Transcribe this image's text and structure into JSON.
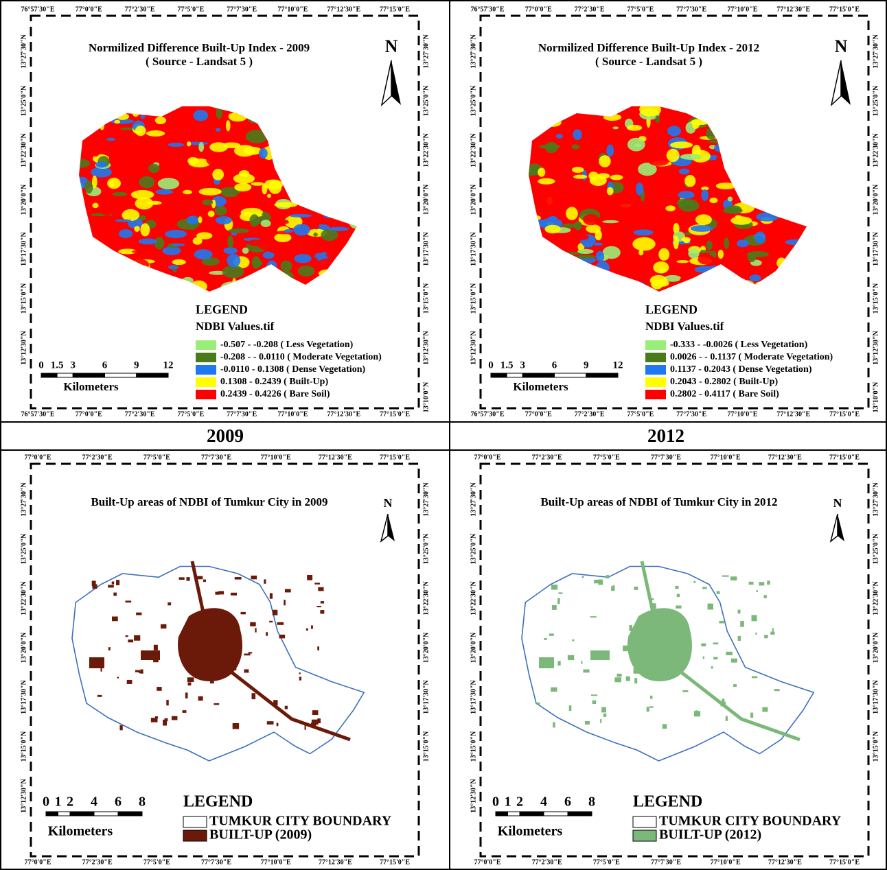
{
  "captions": [
    "2009",
    "2012"
  ],
  "panels": [
    {
      "title": "Normilized Difference Built-Up Index - 2009",
      "subtitle": "( Source - Landsat 5 )",
      "north": "N",
      "kind": "ndbi",
      "legend": {
        "title": "LEGEND",
        "subtitle": "NDBI Values.tif",
        "items": [
          {
            "label": "-0.507 - -0.208 ( Less Vegetation)",
            "color": "#99ee77"
          },
          {
            "label": "-0.208 - - 0.0110 ( Moderate Vegetation)",
            "color": "#4b7a1b"
          },
          {
            "label": "-0.0110 - 0.1308 ( Dense Vegetation)",
            "color": "#1e78f0"
          },
          {
            "label": "0.1308 - 0.2439 ( Built-Up)",
            "color": "#ffff00"
          },
          {
            "label": "0.2439 - 0.4226 ( Bare Soil)",
            "color": "#ff0000"
          }
        ]
      },
      "scale": {
        "labels": [
          "0",
          "1.5",
          "3",
          "6",
          "9",
          "12"
        ],
        "unit": "Kilometers"
      },
      "coords": {
        "top": [
          "76°57'30\"E",
          "77°0'0\"E",
          "77°2'30\"E",
          "77°5'0\"E",
          "77°7'30\"E",
          "77°10'0\"E",
          "77°12'30\"E",
          "77°15'0\"E"
        ],
        "bottom": [
          "76°57'30\"E",
          "77°0'0\"E",
          "77°2'30\"E",
          "77°5'0\"E",
          "77°7'30\"E",
          "77°10'0\"E",
          "77°12'30\"E",
          "77°15'0\"E"
        ],
        "left": [
          "13°27'30\"N",
          "13°25'0\"N",
          "13°22'30\"N",
          "13°20'0\"N",
          "13°17'30\"N",
          "13°15'0\"N",
          "13°12'30\"N"
        ],
        "right": [
          "13°27'30\"N",
          "13°25'0\"N",
          "13°22'30\"N",
          "13°20'0\"N",
          "13°17'30\"N",
          "13°15'0\"N",
          "13°12'30\"N",
          "13°10'0\"N"
        ]
      }
    },
    {
      "title": "Normilized Difference Built-Up Index - 2012",
      "subtitle": "( Source - Landsat 5 )",
      "north": "N",
      "kind": "ndbi",
      "legend": {
        "title": "LEGEND",
        "subtitle": "NDBI Values.tif",
        "items": [
          {
            "label": "-0.333 - -0.0026 ( Less Vegetation)",
            "color": "#99ee77"
          },
          {
            "label": "0.0026 - - 0.1137 ( Moderate Vegetation)",
            "color": "#4b7a1b"
          },
          {
            "label": "0.1137 - 0.2043 ( Dense Vegetation)",
            "color": "#1e78f0"
          },
          {
            "label": "0.2043 - 0.2802 ( Built-Up)",
            "color": "#ffff00"
          },
          {
            "label": "0.2802 - 0.4117 ( Bare Soil)",
            "color": "#ff0000"
          }
        ]
      },
      "scale": {
        "labels": [
          "0",
          "1.5",
          "3",
          "6",
          "9",
          "12"
        ],
        "unit": "Kilometers"
      },
      "coords": {
        "top": [
          "76°57'30\"E",
          "77°0'0\"E",
          "77°2'30\"E",
          "77°5'0\"E",
          "77°7'30\"E",
          "77°10'0\"E",
          "77°12'30\"E",
          "77°15'0\"E"
        ],
        "bottom": [
          "76°57'30\"E",
          "77°0'0\"E",
          "77°2'30\"E",
          "77°5'0\"E",
          "77°7'30\"E",
          "77°10'0\"E",
          "77°12'30\"E",
          "77°15'0\"E"
        ],
        "left": [
          "13°27'30\"N",
          "13°25'0\"N",
          "13°22'30\"N",
          "13°20'0\"N",
          "13°17'30\"N",
          "13°15'0\"N",
          "13°12'30\"N"
        ],
        "right": [
          "13°27'30\"N",
          "13°25'0\"N",
          "13°22'30\"N",
          "13°20'0\"N",
          "13°17'30\"N",
          "13°15'0\"N",
          "13°12'30\"N",
          "13°10'0\"N"
        ]
      }
    },
    {
      "title": "Built-Up areas of NDBI of Tumkur City in 2009",
      "north": "N",
      "kind": "built",
      "legend": {
        "title": "LEGEND",
        "items": [
          {
            "label": "TUMKUR CITY BOUNDARY",
            "color": "#ffffff"
          },
          {
            "label": "BUILT-UP (2009)",
            "color": "#6b1a0a"
          }
        ]
      },
      "scale": {
        "labels": [
          "0",
          "1",
          "2",
          "4",
          "6",
          "8"
        ],
        "unit": "Kilometers"
      },
      "coords": {
        "top": [
          "77°0'0\"E",
          "77°2'30\"E",
          "77°5'0\"E",
          "77°7'30\"E",
          "77°10'0\"E",
          "77°12'30\"E",
          "77°15'0\"E"
        ],
        "bottom": [
          "77°0'0\"E",
          "77°2'30\"E",
          "77°5'0\"E",
          "77°7'30\"E",
          "77°10'0\"E",
          "77°12'30\"E",
          "77°15'0\"E"
        ],
        "left": [
          "13°27'30\"N",
          "13°25'0\"N",
          "13°22'30\"N",
          "13°20'0\"N",
          "13°17'30\"N",
          "13°15'0\"N",
          "13°12'30\"N"
        ],
        "right": [
          "13°27'30\"N",
          "13°25'0\"N",
          "13°22'30\"N",
          "13°20'0\"N",
          "13°17'30\"N",
          "13°15'0\"N"
        ]
      }
    },
    {
      "title": "Built-Up areas of NDBI of Tumkur City in 2012",
      "north": "N",
      "kind": "built",
      "legend": {
        "title": "LEGEND",
        "items": [
          {
            "label": "TUMKUR CITY BOUNDARY",
            "color": "#ffffff"
          },
          {
            "label": "BUILT-UP (2012)",
            "color": "#7cb879"
          }
        ]
      },
      "scale": {
        "labels": [
          "0",
          "1",
          "2",
          "4",
          "6",
          "8"
        ],
        "unit": "Kilometers"
      },
      "coords": {
        "top": [
          "77°0'0\"E",
          "77°2'30\"E",
          "77°5'0\"E",
          "77°7'30\"E",
          "77°10'0\"E",
          "77°12'30\"E",
          "77°15'0\"E"
        ],
        "bottom": [
          "77°0'0\"E",
          "77°2'30\"E",
          "77°5'0\"E",
          "77°7'30\"E",
          "77°10'0\"E",
          "77°12'30\"E",
          "77°15'0\"E"
        ],
        "left": [
          "13°27'30\"N",
          "13°25'0\"N",
          "13°22'30\"N",
          "13°20'0\"N",
          "13°17'30\"N",
          "13°15'0\"N",
          "13°12'30\"N"
        ],
        "right": [
          "13°27'30\"N",
          "13°25'0\"N",
          "13°22'30\"N",
          "13°20'0\"N",
          "13°17'30\"N",
          "13°15'0\"N"
        ]
      }
    }
  ]
}
